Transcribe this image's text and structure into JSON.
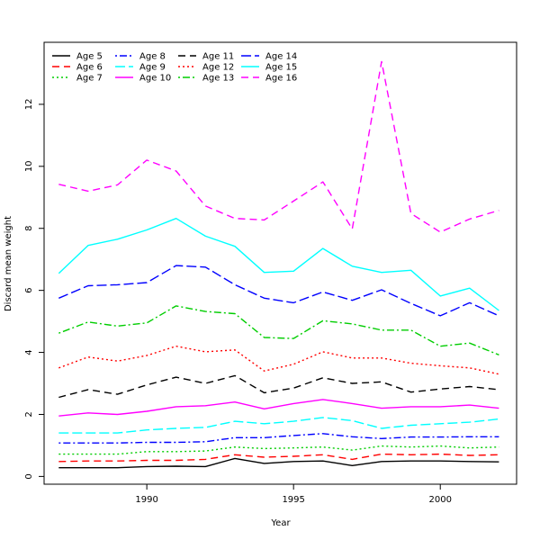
{
  "chart_data": {
    "type": "line",
    "title": "",
    "xlabel": "Year",
    "ylabel": "Discard mean weight",
    "xlim": [
      1986.5,
      2002.6
    ],
    "ylim": [
      -0.25,
      14.0
    ],
    "xticks": [
      1990,
      1995,
      2000
    ],
    "yticks": [
      0,
      2,
      4,
      6,
      8,
      10,
      12
    ],
    "x": [
      1987,
      1988,
      1989,
      1990,
      1991,
      1992,
      1993,
      1994,
      1995,
      1996,
      1997,
      1998,
      1999,
      2000,
      2001,
      2002
    ],
    "legend_position": "top-left",
    "grid": false,
    "series": [
      {
        "name": "Age 5",
        "color": "#000000",
        "dash": "solid",
        "values": [
          0.28,
          0.28,
          0.28,
          0.32,
          0.33,
          0.32,
          0.58,
          0.42,
          0.48,
          0.5,
          0.35,
          0.48,
          0.5,
          0.5,
          0.48,
          0.47
        ]
      },
      {
        "name": "Age 6",
        "color": "#ff0000",
        "dash": "dashed",
        "values": [
          0.48,
          0.5,
          0.5,
          0.52,
          0.52,
          0.55,
          0.7,
          0.62,
          0.65,
          0.7,
          0.55,
          0.72,
          0.7,
          0.72,
          0.68,
          0.7
        ]
      },
      {
        "name": "Age 7",
        "color": "#00cd00",
        "dash": "dotted",
        "values": [
          0.72,
          0.72,
          0.72,
          0.8,
          0.8,
          0.82,
          0.95,
          0.9,
          0.92,
          0.95,
          0.85,
          0.98,
          0.95,
          0.98,
          0.92,
          0.95
        ]
      },
      {
        "name": "Age 8",
        "color": "#0000ff",
        "dash": "dotdash",
        "values": [
          1.08,
          1.08,
          1.08,
          1.1,
          1.1,
          1.12,
          1.25,
          1.25,
          1.32,
          1.38,
          1.28,
          1.22,
          1.27,
          1.27,
          1.28,
          1.28
        ]
      },
      {
        "name": "Age 9",
        "color": "#00ffff",
        "dash": "longdash",
        "values": [
          1.4,
          1.4,
          1.4,
          1.5,
          1.55,
          1.58,
          1.78,
          1.7,
          1.78,
          1.9,
          1.8,
          1.55,
          1.65,
          1.7,
          1.75,
          1.85
        ]
      },
      {
        "name": "Age 10",
        "color": "#ff00ff",
        "dash": "solid",
        "values": [
          1.95,
          2.05,
          2.0,
          2.1,
          2.25,
          2.28,
          2.4,
          2.18,
          2.35,
          2.48,
          2.35,
          2.2,
          2.25,
          2.25,
          2.3,
          2.2
        ]
      },
      {
        "name": "Age 11",
        "color": "#000000",
        "dash": "dashed",
        "values": [
          2.55,
          2.8,
          2.65,
          2.95,
          3.2,
          3.0,
          3.25,
          2.7,
          2.85,
          3.18,
          3.0,
          3.05,
          2.72,
          2.82,
          2.9,
          2.8
        ]
      },
      {
        "name": "Age 12",
        "color": "#ff0000",
        "dash": "dotted",
        "values": [
          3.5,
          3.85,
          3.72,
          3.9,
          4.2,
          4.02,
          4.08,
          3.4,
          3.62,
          4.02,
          3.82,
          3.82,
          3.65,
          3.57,
          3.5,
          3.3
        ]
      },
      {
        "name": "Age 13",
        "color": "#00cd00",
        "dash": "dotdash",
        "values": [
          4.62,
          4.98,
          4.85,
          4.95,
          5.5,
          5.32,
          5.25,
          4.48,
          4.45,
          5.02,
          4.92,
          4.72,
          4.72,
          4.2,
          4.3,
          3.92
        ]
      },
      {
        "name": "Age 14",
        "color": "#0000ff",
        "dash": "longdash",
        "values": [
          5.75,
          6.15,
          6.18,
          6.25,
          6.8,
          6.75,
          6.18,
          5.75,
          5.6,
          5.95,
          5.68,
          6.02,
          5.58,
          5.18,
          5.6,
          5.18
        ]
      },
      {
        "name": "Age 15",
        "color": "#00ffff",
        "dash": "solid",
        "values": [
          6.55,
          7.45,
          7.65,
          7.95,
          8.32,
          7.75,
          7.42,
          6.58,
          6.62,
          7.35,
          6.78,
          6.58,
          6.65,
          5.82,
          6.07,
          5.35
        ]
      },
      {
        "name": "Age 16",
        "color": "#ff00ff",
        "dash": "dashed",
        "values": [
          9.42,
          9.2,
          9.4,
          10.2,
          9.85,
          8.72,
          8.32,
          8.27,
          8.88,
          9.5,
          7.98,
          13.38,
          8.48,
          7.88,
          8.3,
          8.58
        ]
      }
    ]
  }
}
